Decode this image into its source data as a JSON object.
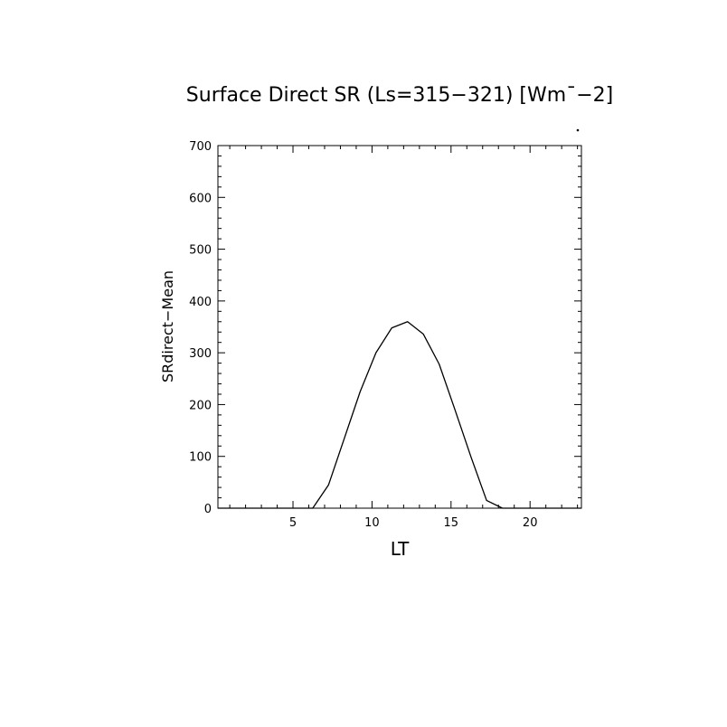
{
  "chart_data": {
    "type": "line",
    "title": "Surface Direct SR (Ls=315−321) [Wm¯−2]",
    "xlabel": "LT",
    "ylabel": "SRdirect−Mean",
    "xlim": [
      0.25,
      23.25
    ],
    "ylim": [
      0,
      700
    ],
    "xticks": [
      5,
      10,
      15,
      20
    ],
    "yticks": [
      0,
      100,
      200,
      300,
      400,
      500,
      600,
      700
    ],
    "grid": false,
    "series": [
      {
        "x": [
          0.25,
          1.25,
          2.25,
          3.25,
          4.25,
          5.25,
          6.25,
          7.25,
          8.25,
          9.25,
          10.25,
          11.25,
          12.25,
          13.25,
          14.25,
          15.25,
          16.25,
          17.25,
          18.25,
          19.25,
          20.25,
          21.25,
          22.25,
          23.25
        ],
        "y": [
          0,
          0,
          0,
          0,
          0,
          0,
          0,
          45,
          135,
          225,
          300,
          348,
          360,
          336,
          278,
          190,
          100,
          15,
          0,
          0,
          0,
          0,
          0,
          0
        ],
        "color": "#000000"
      }
    ]
  }
}
